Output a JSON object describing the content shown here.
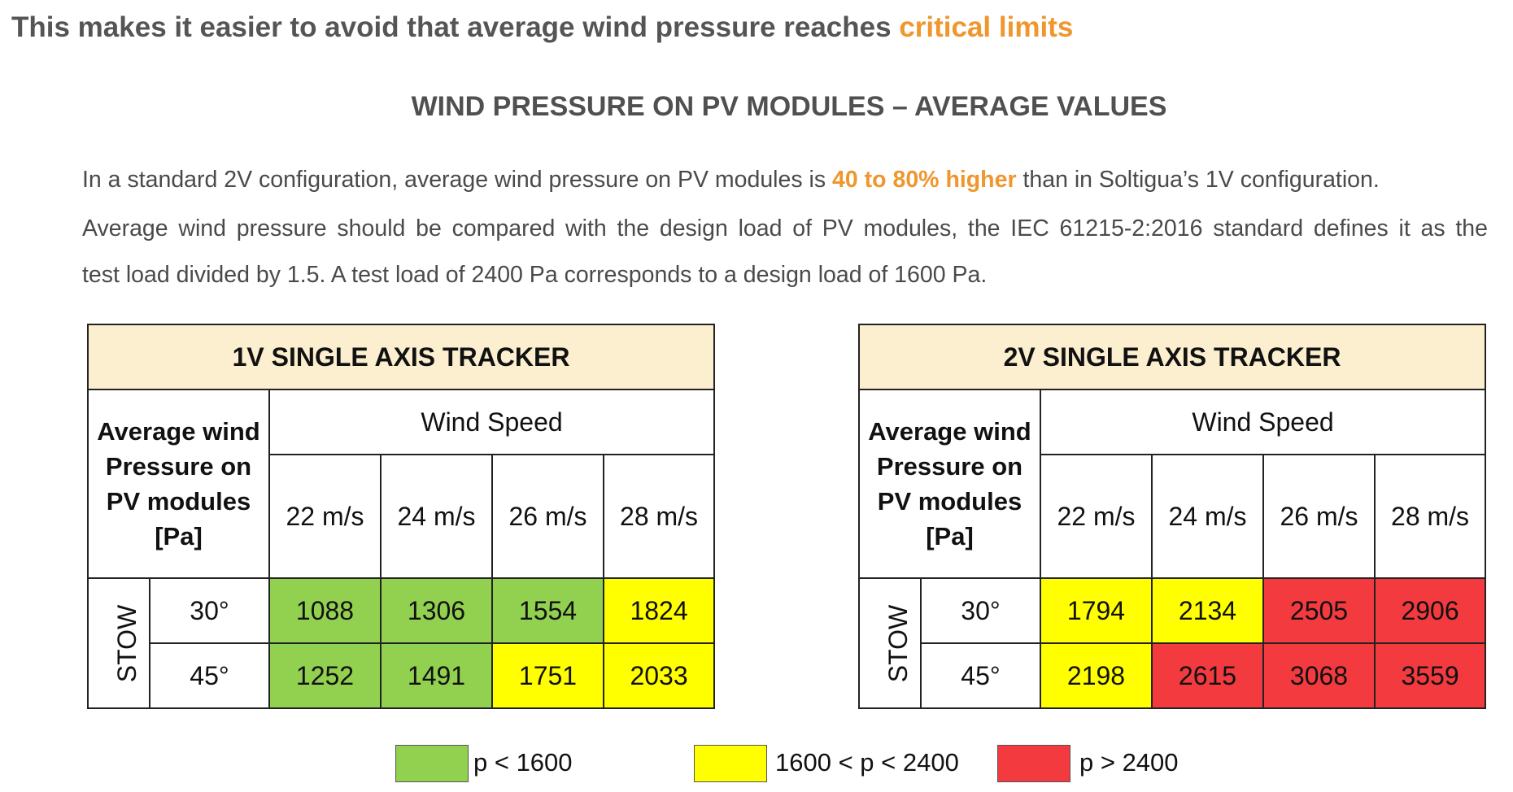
{
  "headline": {
    "prefix": "This makes it easier to avoid that average wind pressure reaches ",
    "highlight": "critical limits"
  },
  "subtitle": "WIND PRESSURE ON PV MODULES – AVERAGE VALUES",
  "paragraph1": {
    "before": "In a standard 2V configuration, average wind pressure on PV modules is ",
    "highlight": "40 to 80% higher",
    "after": " than in Soltigua’s 1V configuration."
  },
  "paragraph2": {
    "line1": "Average wind pressure should be compared with the design load of PV modules, the IEC 61215-2:2016 standard defines it as the",
    "line2": "test load divided by 1.5. A test load of 2400 Pa corresponds to a design load of 1600 Pa."
  },
  "tables": [
    {
      "title": "1V SINGLE AXIS TRACKER",
      "row_header": "Average wind Pressure on PV modules [Pa]",
      "column_group": "Wind Speed",
      "speeds": [
        "22 m/s",
        "24 m/s",
        "26 m/s",
        "28 m/s"
      ],
      "stow_label": "STOW",
      "rows": [
        {
          "angle": "30°",
          "values": [
            "1088",
            "1306",
            "1554",
            "1824"
          ],
          "levels": [
            "green",
            "green",
            "green",
            "yellow"
          ]
        },
        {
          "angle": "45°",
          "values": [
            "1252",
            "1491",
            "1751",
            "2033"
          ],
          "levels": [
            "green",
            "green",
            "yellow",
            "yellow"
          ]
        }
      ]
    },
    {
      "title": "2V SINGLE AXIS TRACKER",
      "row_header": "Average wind Pressure on PV modules [Pa]",
      "column_group": "Wind Speed",
      "speeds": [
        "22 m/s",
        "24 m/s",
        "26 m/s",
        "28 m/s"
      ],
      "stow_label": "STOW",
      "rows": [
        {
          "angle": "30°",
          "values": [
            "1794",
            "2134",
            "2505",
            "2906"
          ],
          "levels": [
            "yellow",
            "yellow",
            "red",
            "red"
          ]
        },
        {
          "angle": "45°",
          "values": [
            "2198",
            "2615",
            "3068",
            "3559"
          ],
          "levels": [
            "yellow",
            "red",
            "red",
            "red"
          ]
        }
      ]
    }
  ],
  "legend": [
    {
      "label": "p < 1600",
      "color": "#92D050"
    },
    {
      "label": "1600 < p < 2400",
      "color": "#FFFF00"
    },
    {
      "label": "p > 2400",
      "color": "#F23A3F"
    }
  ]
}
